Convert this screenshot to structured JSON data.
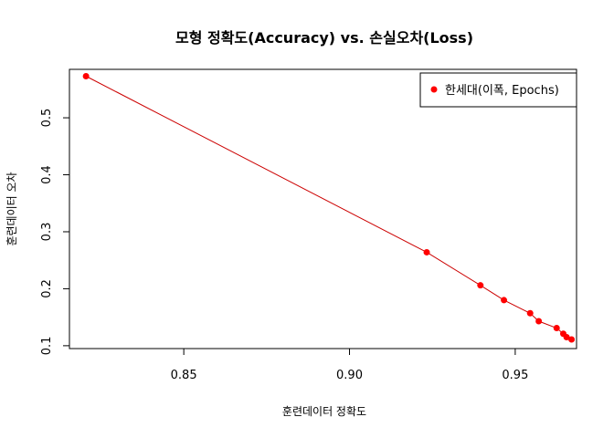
{
  "chart_data": {
    "type": "scatter",
    "title": "모형 정확도(Accuracy) vs. 손실오차(Loss)",
    "xlabel": "훈련데이터 정확도",
    "ylabel": "훈련데이터 오차",
    "xlim": [
      0.8155,
      0.9685
    ],
    "ylim": [
      0.095,
      0.585
    ],
    "x_ticks": [
      0.85,
      0.9,
      0.95
    ],
    "x_tick_labels": [
      "0.85",
      "0.90",
      "0.95"
    ],
    "y_ticks": [
      0.1,
      0.2,
      0.3,
      0.4,
      0.5
    ],
    "y_tick_labels": [
      "0.1",
      "0.2",
      "0.3",
      "0.4",
      "0.5"
    ],
    "grid": false,
    "legend_position": "top-right",
    "series": [
      {
        "name": "한세대(이폭, Epochs)",
        "color": "#ff0000",
        "line_color": "#cc0000",
        "points": [
          {
            "x": 0.8205,
            "y": 0.573
          },
          {
            "x": 0.9233,
            "y": 0.264
          },
          {
            "x": 0.9395,
            "y": 0.206
          },
          {
            "x": 0.9466,
            "y": 0.18
          },
          {
            "x": 0.9545,
            "y": 0.157
          },
          {
            "x": 0.9571,
            "y": 0.143
          },
          {
            "x": 0.9625,
            "y": 0.131
          },
          {
            "x": 0.9645,
            "y": 0.121
          },
          {
            "x": 0.9655,
            "y": 0.115
          },
          {
            "x": 0.967,
            "y": 0.111
          }
        ]
      }
    ]
  }
}
